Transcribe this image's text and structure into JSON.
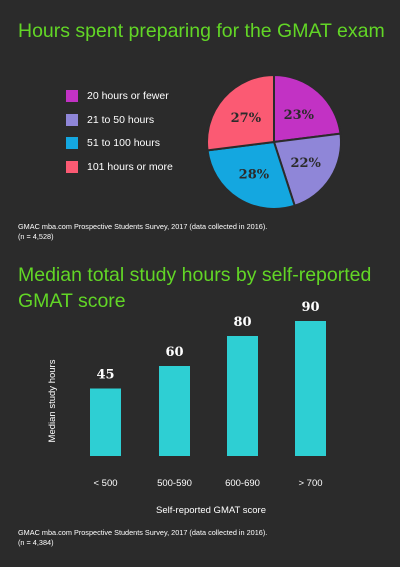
{
  "charts": [
    {
      "title": "Hours spent preparing for the GMAT exam",
      "source_line1": "GMAC mba.com Prospective Students Survey, 2017 (data collected in 2016).",
      "source_line2": "(n = 4,528)"
    },
    {
      "title": "Median total study hours by self-reported GMAT score",
      "source_line1": "GMAC mba.com Prospective Students Survey, 2017 (data collected in 2016).",
      "source_line2": "(n = 4,384)"
    }
  ],
  "chart_data": [
    {
      "type": "pie",
      "title": "Hours spent preparing for the GMAT exam",
      "legend_position": "left",
      "slices": [
        {
          "label": "20 hours or fewer",
          "value": 23,
          "display": "23%",
          "color": "#c232c4"
        },
        {
          "label": "21 to 50 hours",
          "value": 22,
          "display": "22%",
          "color": "#8f86d8"
        },
        {
          "label": "51 to 100 hours",
          "value": 28,
          "display": "28%",
          "color": "#14a7e0"
        },
        {
          "label": "101 hours or more",
          "value": 27,
          "display": "27%",
          "color": "#fb5a73"
        }
      ]
    },
    {
      "type": "bar",
      "title": "Median total study hours by self-reported GMAT score",
      "categories": [
        "< 500",
        "500-590",
        "600-690",
        "> 700"
      ],
      "values": [
        45,
        60,
        80,
        90
      ],
      "xlabel": "Self-reported GMAT score",
      "ylabel": "Median study hours",
      "ylim": [
        0,
        100
      ],
      "grid": false,
      "bar_color": "#2ecfd3"
    }
  ]
}
